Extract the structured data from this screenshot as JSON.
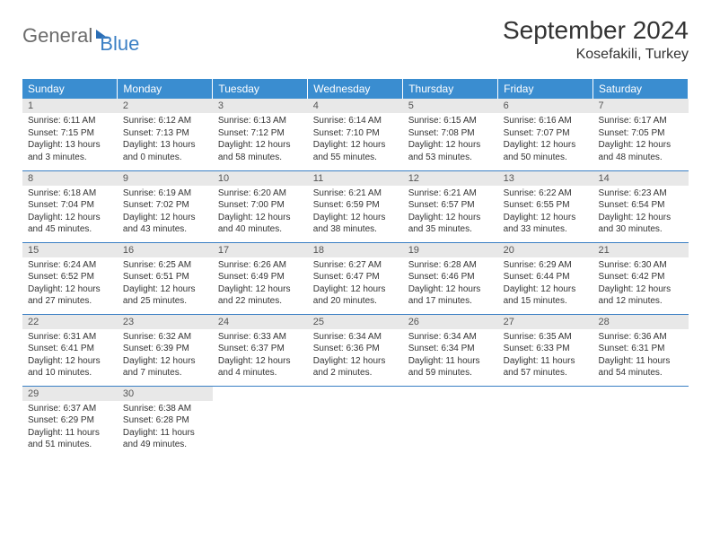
{
  "brand": {
    "part1": "General",
    "part2": "Blue"
  },
  "title": "September 2024",
  "location": "Kosefakili, Turkey",
  "colors": {
    "header_bg": "#3a8dd0",
    "header_text": "#ffffff",
    "rule": "#3a7fc4",
    "daynum_bg": "#e8e8e8",
    "empty_bg": "#f3f3f3",
    "body_text": "#333333"
  },
  "weekdays": [
    "Sunday",
    "Monday",
    "Tuesday",
    "Wednesday",
    "Thursday",
    "Friday",
    "Saturday"
  ],
  "days": [
    {
      "n": "1",
      "sunrise": "Sunrise: 6:11 AM",
      "sunset": "Sunset: 7:15 PM",
      "d1": "Daylight: 13 hours",
      "d2": "and 3 minutes."
    },
    {
      "n": "2",
      "sunrise": "Sunrise: 6:12 AM",
      "sunset": "Sunset: 7:13 PM",
      "d1": "Daylight: 13 hours",
      "d2": "and 0 minutes."
    },
    {
      "n": "3",
      "sunrise": "Sunrise: 6:13 AM",
      "sunset": "Sunset: 7:12 PM",
      "d1": "Daylight: 12 hours",
      "d2": "and 58 minutes."
    },
    {
      "n": "4",
      "sunrise": "Sunrise: 6:14 AM",
      "sunset": "Sunset: 7:10 PM",
      "d1": "Daylight: 12 hours",
      "d2": "and 55 minutes."
    },
    {
      "n": "5",
      "sunrise": "Sunrise: 6:15 AM",
      "sunset": "Sunset: 7:08 PM",
      "d1": "Daylight: 12 hours",
      "d2": "and 53 minutes."
    },
    {
      "n": "6",
      "sunrise": "Sunrise: 6:16 AM",
      "sunset": "Sunset: 7:07 PM",
      "d1": "Daylight: 12 hours",
      "d2": "and 50 minutes."
    },
    {
      "n": "7",
      "sunrise": "Sunrise: 6:17 AM",
      "sunset": "Sunset: 7:05 PM",
      "d1": "Daylight: 12 hours",
      "d2": "and 48 minutes."
    },
    {
      "n": "8",
      "sunrise": "Sunrise: 6:18 AM",
      "sunset": "Sunset: 7:04 PM",
      "d1": "Daylight: 12 hours",
      "d2": "and 45 minutes."
    },
    {
      "n": "9",
      "sunrise": "Sunrise: 6:19 AM",
      "sunset": "Sunset: 7:02 PM",
      "d1": "Daylight: 12 hours",
      "d2": "and 43 minutes."
    },
    {
      "n": "10",
      "sunrise": "Sunrise: 6:20 AM",
      "sunset": "Sunset: 7:00 PM",
      "d1": "Daylight: 12 hours",
      "d2": "and 40 minutes."
    },
    {
      "n": "11",
      "sunrise": "Sunrise: 6:21 AM",
      "sunset": "Sunset: 6:59 PM",
      "d1": "Daylight: 12 hours",
      "d2": "and 38 minutes."
    },
    {
      "n": "12",
      "sunrise": "Sunrise: 6:21 AM",
      "sunset": "Sunset: 6:57 PM",
      "d1": "Daylight: 12 hours",
      "d2": "and 35 minutes."
    },
    {
      "n": "13",
      "sunrise": "Sunrise: 6:22 AM",
      "sunset": "Sunset: 6:55 PM",
      "d1": "Daylight: 12 hours",
      "d2": "and 33 minutes."
    },
    {
      "n": "14",
      "sunrise": "Sunrise: 6:23 AM",
      "sunset": "Sunset: 6:54 PM",
      "d1": "Daylight: 12 hours",
      "d2": "and 30 minutes."
    },
    {
      "n": "15",
      "sunrise": "Sunrise: 6:24 AM",
      "sunset": "Sunset: 6:52 PM",
      "d1": "Daylight: 12 hours",
      "d2": "and 27 minutes."
    },
    {
      "n": "16",
      "sunrise": "Sunrise: 6:25 AM",
      "sunset": "Sunset: 6:51 PM",
      "d1": "Daylight: 12 hours",
      "d2": "and 25 minutes."
    },
    {
      "n": "17",
      "sunrise": "Sunrise: 6:26 AM",
      "sunset": "Sunset: 6:49 PM",
      "d1": "Daylight: 12 hours",
      "d2": "and 22 minutes."
    },
    {
      "n": "18",
      "sunrise": "Sunrise: 6:27 AM",
      "sunset": "Sunset: 6:47 PM",
      "d1": "Daylight: 12 hours",
      "d2": "and 20 minutes."
    },
    {
      "n": "19",
      "sunrise": "Sunrise: 6:28 AM",
      "sunset": "Sunset: 6:46 PM",
      "d1": "Daylight: 12 hours",
      "d2": "and 17 minutes."
    },
    {
      "n": "20",
      "sunrise": "Sunrise: 6:29 AM",
      "sunset": "Sunset: 6:44 PM",
      "d1": "Daylight: 12 hours",
      "d2": "and 15 minutes."
    },
    {
      "n": "21",
      "sunrise": "Sunrise: 6:30 AM",
      "sunset": "Sunset: 6:42 PM",
      "d1": "Daylight: 12 hours",
      "d2": "and 12 minutes."
    },
    {
      "n": "22",
      "sunrise": "Sunrise: 6:31 AM",
      "sunset": "Sunset: 6:41 PM",
      "d1": "Daylight: 12 hours",
      "d2": "and 10 minutes."
    },
    {
      "n": "23",
      "sunrise": "Sunrise: 6:32 AM",
      "sunset": "Sunset: 6:39 PM",
      "d1": "Daylight: 12 hours",
      "d2": "and 7 minutes."
    },
    {
      "n": "24",
      "sunrise": "Sunrise: 6:33 AM",
      "sunset": "Sunset: 6:37 PM",
      "d1": "Daylight: 12 hours",
      "d2": "and 4 minutes."
    },
    {
      "n": "25",
      "sunrise": "Sunrise: 6:34 AM",
      "sunset": "Sunset: 6:36 PM",
      "d1": "Daylight: 12 hours",
      "d2": "and 2 minutes."
    },
    {
      "n": "26",
      "sunrise": "Sunrise: 6:34 AM",
      "sunset": "Sunset: 6:34 PM",
      "d1": "Daylight: 11 hours",
      "d2": "and 59 minutes."
    },
    {
      "n": "27",
      "sunrise": "Sunrise: 6:35 AM",
      "sunset": "Sunset: 6:33 PM",
      "d1": "Daylight: 11 hours",
      "d2": "and 57 minutes."
    },
    {
      "n": "28",
      "sunrise": "Sunrise: 6:36 AM",
      "sunset": "Sunset: 6:31 PM",
      "d1": "Daylight: 11 hours",
      "d2": "and 54 minutes."
    },
    {
      "n": "29",
      "sunrise": "Sunrise: 6:37 AM",
      "sunset": "Sunset: 6:29 PM",
      "d1": "Daylight: 11 hours",
      "d2": "and 51 minutes."
    },
    {
      "n": "30",
      "sunrise": "Sunrise: 6:38 AM",
      "sunset": "Sunset: 6:28 PM",
      "d1": "Daylight: 11 hours",
      "d2": "and 49 minutes."
    }
  ],
  "grid": {
    "start_weekday": 0,
    "total_cells": 35
  }
}
